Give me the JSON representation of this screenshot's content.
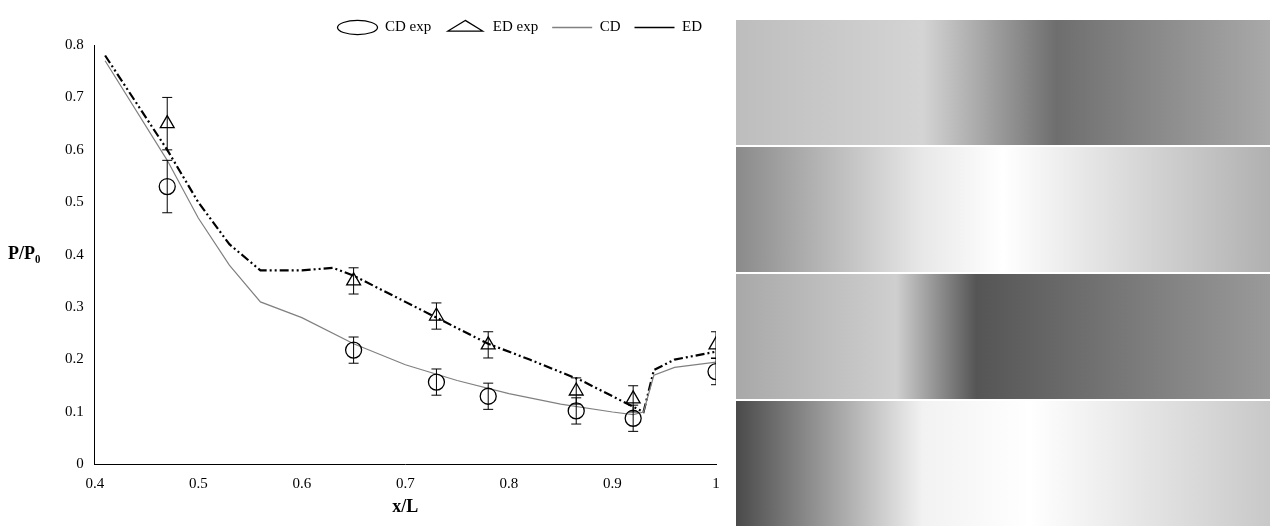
{
  "chart_data": {
    "type": "line",
    "x_label": "x/L",
    "y_label": "P/P₀",
    "xlim": [
      0.4,
      1
    ],
    "xticks": [
      0.4,
      0.5,
      0.6,
      0.7,
      0.8,
      0.9,
      1
    ],
    "ylim": [
      0,
      0.8
    ],
    "yticks": [
      0,
      0.1,
      0.2,
      0.3,
      0.4,
      0.5,
      0.6,
      0.7,
      0.8
    ],
    "grid": false,
    "legend": "top-right",
    "series": [
      {
        "name": "CD",
        "type": "line",
        "color": "#808080",
        "line_style": "solid",
        "x": [
          0.41,
          0.47,
          0.5,
          0.53,
          0.56,
          0.6,
          0.65,
          0.7,
          0.75,
          0.8,
          0.85,
          0.9,
          0.92,
          0.93,
          0.94,
          0.96,
          1.0
        ],
        "values": [
          0.77,
          0.58,
          0.47,
          0.38,
          0.31,
          0.28,
          0.23,
          0.19,
          0.16,
          0.135,
          0.115,
          0.1,
          0.095,
          0.1,
          0.17,
          0.185,
          0.195
        ]
      },
      {
        "name": "ED",
        "type": "line",
        "color": "#000000",
        "line_style": "dash-dot-dot",
        "x": [
          0.41,
          0.47,
          0.5,
          0.53,
          0.56,
          0.6,
          0.63,
          0.65,
          0.7,
          0.73,
          0.78,
          0.82,
          0.87,
          0.9,
          0.93,
          0.94,
          0.96,
          1.0
        ],
        "values": [
          0.78,
          0.6,
          0.5,
          0.42,
          0.37,
          0.37,
          0.375,
          0.36,
          0.31,
          0.28,
          0.23,
          0.2,
          0.16,
          0.13,
          0.1,
          0.18,
          0.2,
          0.215
        ]
      },
      {
        "name": "CD exp",
        "type": "scatter",
        "color": "#000000",
        "marker": "circle",
        "x": [
          0.47,
          0.65,
          0.73,
          0.78,
          0.865,
          0.92,
          1.0
        ],
        "values": [
          0.53,
          0.218,
          0.157,
          0.13,
          0.102,
          0.088,
          0.177
        ],
        "errors": [
          0.05,
          0.025,
          0.025,
          0.025,
          0.025,
          0.025,
          0.025
        ]
      },
      {
        "name": "ED exp",
        "type": "scatter",
        "color": "#000000",
        "marker": "triangle",
        "x": [
          0.47,
          0.65,
          0.73,
          0.78,
          0.865,
          0.92,
          1.0
        ],
        "values": [
          0.65,
          0.35,
          0.283,
          0.228,
          0.14,
          0.125,
          0.228
        ],
        "errors": [
          0.05,
          0.025,
          0.025,
          0.025,
          0.025,
          0.025,
          0.025
        ]
      }
    ]
  }
}
